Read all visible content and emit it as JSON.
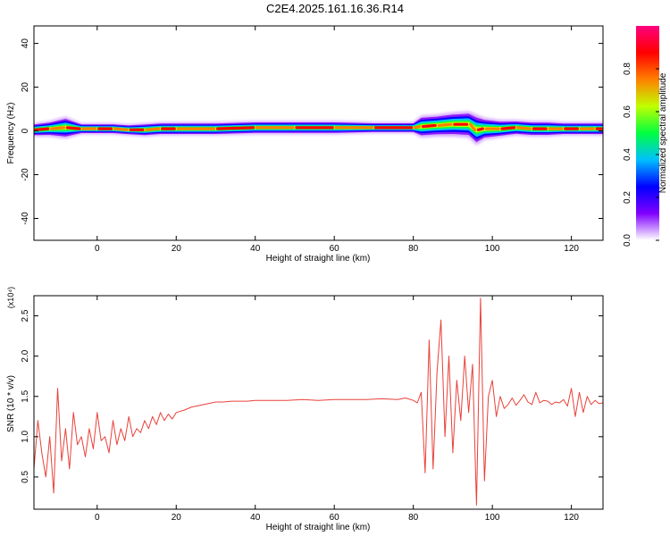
{
  "title": "C2E4.2025.161.16.36.R14",
  "chart_data": [
    {
      "type": "heatmap",
      "xlabel": "Height of straight line (km)",
      "ylabel": "Frequency (Hz)",
      "xlim": [
        -16,
        128
      ],
      "ylim": [
        -50,
        48
      ],
      "xticks": [
        0,
        20,
        40,
        60,
        80,
        100,
        120
      ],
      "xtick_labels": [
        "0",
        "20",
        "40",
        "60",
        "80",
        "100",
        "120"
      ],
      "yticks": [
        -40,
        -20,
        0,
        20,
        40
      ],
      "ytick_labels": [
        "-40",
        "-20",
        "0",
        "20",
        "40"
      ],
      "band": {
        "x": [
          -16,
          -12,
          -8,
          -4,
          0,
          4,
          8,
          12,
          16,
          20,
          30,
          40,
          50,
          60,
          70,
          80,
          82,
          86,
          90,
          94,
          96,
          98,
          102,
          106,
          110,
          114,
          118,
          122,
          126,
          128
        ],
        "center_freq": [
          0.5,
          1,
          1.5,
          1,
          1,
          1,
          0.5,
          0.5,
          1,
          1,
          1,
          1.5,
          1.5,
          1.5,
          1.5,
          1.5,
          2,
          2.5,
          3,
          3,
          0.5,
          1,
          1,
          1.5,
          1,
          1,
          1,
          1,
          1,
          1
        ],
        "half_width": [
          3,
          3.5,
          5,
          2.5,
          2.5,
          2.5,
          2.5,
          3,
          3,
          3,
          3,
          3,
          3,
          3,
          2.5,
          2.5,
          5,
          5,
          5.5,
          6,
          7,
          5,
          4,
          3.5,
          3.5,
          3.5,
          3,
          3,
          3,
          3
        ]
      },
      "colorbar": {
        "label": "Normalized spectral amplitude",
        "range": [
          0.0,
          1.0
        ],
        "ticks": [
          0.0,
          0.2,
          0.4,
          0.6,
          0.8
        ],
        "tick_labels": [
          "0.0",
          "0.2",
          "0.4",
          "0.6",
          "0.8"
        ],
        "colors": [
          "#ffffff",
          "#8000ff",
          "#0000ff",
          "#00c0ff",
          "#00ff40",
          "#c0ff00",
          "#ff8000",
          "#ff0000",
          "#ff0080"
        ]
      }
    },
    {
      "type": "line",
      "xlabel": "Height of straight line (km)",
      "ylabel": "SNR (10 * v/v)",
      "scale_label": "(x10⁴)",
      "xlim": [
        -16,
        128
      ],
      "ylim": [
        0.1,
        2.75
      ],
      "xticks": [
        0,
        20,
        40,
        60,
        80,
        100,
        120
      ],
      "xtick_labels": [
        "0",
        "20",
        "40",
        "60",
        "80",
        "100",
        "120"
      ],
      "yticks": [
        0.5,
        1.0,
        1.5,
        2.0,
        2.5
      ],
      "ytick_labels": [
        "0.5",
        "1.0",
        "1.5",
        "2.0",
        "2.5"
      ],
      "color": "#e8413a",
      "series": [
        {
          "x": [
            -16,
            -15,
            -14,
            -13,
            -12,
            -11,
            -10,
            -9,
            -8,
            -7,
            -6,
            -5,
            -4,
            -3,
            -2,
            -1,
            0,
            1,
            2,
            3,
            4,
            5,
            6,
            7,
            8,
            9,
            10,
            11,
            12,
            13,
            14,
            15,
            16,
            17,
            18,
            19,
            20,
            22,
            24,
            26,
            28,
            30,
            32,
            34,
            36,
            38,
            40,
            44,
            48,
            52,
            56,
            60,
            64,
            68,
            72,
            76,
            78,
            80,
            81,
            82,
            83,
            84,
            85,
            86,
            87,
            88,
            89,
            90,
            91,
            92,
            93,
            94,
            95,
            96,
            97,
            98,
            99,
            100,
            101,
            102,
            103,
            104,
            105,
            106,
            107,
            108,
            109,
            110,
            111,
            112,
            113,
            114,
            115,
            116,
            117,
            118,
            119,
            120,
            121,
            122,
            123,
            124,
            125,
            126,
            127,
            128
          ],
          "values": [
            0.6,
            1.2,
            0.8,
            0.5,
            1.0,
            0.3,
            1.6,
            0.7,
            1.1,
            0.6,
            1.3,
            0.9,
            1.0,
            0.75,
            1.1,
            0.85,
            1.3,
            0.95,
            1.0,
            0.8,
            1.2,
            0.9,
            1.1,
            0.95,
            1.25,
            1.0,
            1.1,
            1.05,
            1.2,
            1.1,
            1.25,
            1.15,
            1.3,
            1.2,
            1.28,
            1.22,
            1.3,
            1.33,
            1.37,
            1.39,
            1.41,
            1.43,
            1.43,
            1.44,
            1.44,
            1.44,
            1.45,
            1.45,
            1.45,
            1.46,
            1.45,
            1.46,
            1.46,
            1.46,
            1.47,
            1.46,
            1.48,
            1.45,
            1.42,
            1.55,
            0.55,
            2.2,
            0.6,
            1.8,
            2.45,
            1.0,
            2.0,
            0.8,
            1.7,
            1.2,
            2.0,
            1.3,
            1.9,
            0.15,
            2.72,
            0.45,
            1.5,
            1.7,
            1.25,
            1.5,
            1.35,
            1.4,
            1.48,
            1.39,
            1.45,
            1.52,
            1.43,
            1.4,
            1.55,
            1.42,
            1.45,
            1.44,
            1.4,
            1.43,
            1.42,
            1.46,
            1.38,
            1.6,
            1.25,
            1.55,
            1.3,
            1.5,
            1.4,
            1.45,
            1.41,
            1.42
          ]
        }
      ]
    }
  ]
}
